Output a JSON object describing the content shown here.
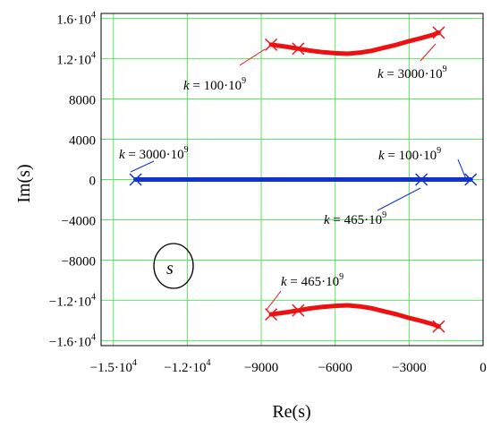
{
  "chart_data": {
    "type": "scatter",
    "xlabel": "Re(s)",
    "ylabel": "Im(s)",
    "xlim": [
      -15500,
      0
    ],
    "ylim": [
      -16500,
      16500
    ],
    "grid": true,
    "x_ticks": [
      {
        "value": -15000,
        "mantissa": "−1.5·10",
        "exp": "4"
      },
      {
        "value": -12000,
        "mantissa": "−1.2·10",
        "exp": "4"
      },
      {
        "value": -9000,
        "mantissa": "−9000",
        "exp": ""
      },
      {
        "value": -6000,
        "mantissa": "−6000",
        "exp": ""
      },
      {
        "value": -3000,
        "mantissa": "−3000",
        "exp": ""
      },
      {
        "value": 0,
        "mantissa": "0",
        "exp": ""
      }
    ],
    "y_ticks": [
      {
        "value": 16000,
        "mantissa": "1.6·10",
        "exp": "4"
      },
      {
        "value": 12000,
        "mantissa": "1.2·10",
        "exp": "4"
      },
      {
        "value": 8000,
        "mantissa": "8000",
        "exp": ""
      },
      {
        "value": 4000,
        "mantissa": "4000",
        "exp": ""
      },
      {
        "value": 0,
        "mantissa": "0",
        "exp": ""
      },
      {
        "value": -4000,
        "mantissa": "−4000",
        "exp": ""
      },
      {
        "value": -8000,
        "mantissa": "−8000",
        "exp": ""
      },
      {
        "value": -12000,
        "mantissa": "−1.2·10",
        "exp": "4"
      },
      {
        "value": -16000,
        "mantissa": "−1.6·10",
        "exp": "4"
      }
    ],
    "series": [
      {
        "color": "#ee1111",
        "x": [
          -8600,
          -8000,
          -7500,
          -7000,
          -6500,
          -6000,
          -5500,
          -5000,
          -4500,
          -4000,
          -3500,
          -3000,
          -2500,
          -2000,
          -1800
        ],
        "y": [
          13400,
          13200,
          13000,
          12800,
          12650,
          12550,
          12500,
          12600,
          12800,
          13100,
          13400,
          13750,
          14050,
          14400,
          14600
        ]
      },
      {
        "color": "#ee1111",
        "x": [
          -8600,
          -8000,
          -7500,
          -7000,
          -6500,
          -6000,
          -5500,
          -5000,
          -4500,
          -4000,
          -3500,
          -3000,
          -2500,
          -2000,
          -1800
        ],
        "y": [
          -13400,
          -13200,
          -13000,
          -12800,
          -12650,
          -12550,
          -12500,
          -12600,
          -12800,
          -13100,
          -13400,
          -13750,
          -14050,
          -14400,
          -14600
        ]
      },
      {
        "color": "#1133cc",
        "x": [
          -14100,
          -500
        ],
        "y": [
          0,
          0
        ]
      }
    ],
    "markers": [
      {
        "color": "#ee1111",
        "x": -8600,
        "y": 13400
      },
      {
        "color": "#ee1111",
        "x": -7500,
        "y": 13000
      },
      {
        "color": "#ee1111",
        "x": -1800,
        "y": 14600
      },
      {
        "color": "#ee1111",
        "x": -8600,
        "y": -13400
      },
      {
        "color": "#ee1111",
        "x": -7500,
        "y": -13000
      },
      {
        "color": "#ee1111",
        "x": -1800,
        "y": -14600
      },
      {
        "color": "#1133cc",
        "x": -14100,
        "y": 0
      },
      {
        "color": "#1133cc",
        "x": -2500,
        "y": 0
      },
      {
        "color": "#1133cc",
        "x": -500,
        "y": 0
      }
    ],
    "annotations": [
      {
        "k": "k",
        "eq": " = 100·10",
        "exp": "9",
        "color": "#ee1111",
        "point": [
          -8600,
          13400
        ]
      },
      {
        "k": "k",
        "eq": " = 3000·10",
        "exp": "9",
        "color": "#ee1111",
        "point": [
          -1800,
          14600
        ]
      },
      {
        "k": "k",
        "eq": " = 3000·10",
        "exp": "9",
        "color": "#1133cc",
        "point": [
          -14100,
          0
        ]
      },
      {
        "k": "k",
        "eq": " = 100·10",
        "exp": "9",
        "color": "#1133cc",
        "point": [
          -500,
          0
        ]
      },
      {
        "k": "k",
        "eq": " = 465·10",
        "exp": "9",
        "color": "#1133cc",
        "point": [
          -2500,
          0
        ]
      },
      {
        "k": "k",
        "eq": " = 465·10",
        "exp": "9",
        "color": "#ee1111",
        "point": [
          -7500,
          -13000
        ]
      }
    ],
    "plane_label": "s"
  }
}
